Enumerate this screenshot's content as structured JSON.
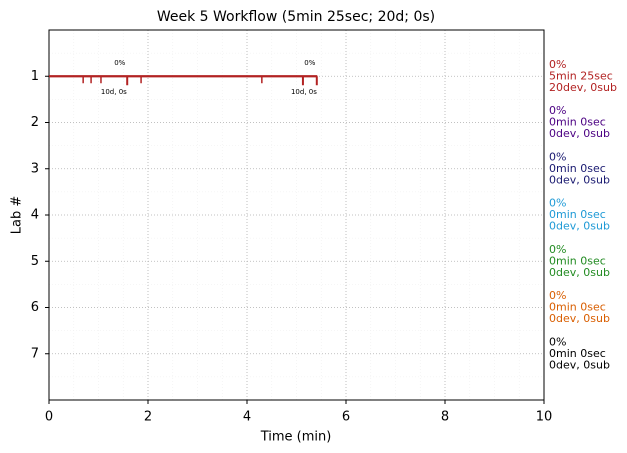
{
  "chart_data": {
    "type": "timeline",
    "title": "Week 5 Workflow (5min 25sec; 20d; 0s)",
    "x_label": "Time (min)",
    "y_label": "Lab #",
    "xlim": [
      0,
      10
    ],
    "xticks": [
      0,
      2,
      4,
      6,
      8,
      10
    ],
    "ylim": [
      8,
      0
    ],
    "yticks": [
      1,
      2,
      3,
      4,
      5,
      6,
      7
    ],
    "grid": true,
    "minor_grid": true,
    "series": [
      {
        "color": "#b22222",
        "y": 1,
        "start": 0,
        "end": 5.42,
        "events": [
          0.69,
          0.85,
          1.05,
          1.86,
          4.3
        ],
        "major_events": [
          1.58,
          5.13,
          5.41
        ]
      }
    ],
    "annotations": [
      {
        "text": "0%",
        "x": 1.43,
        "y": 0.71
      },
      {
        "text": "10d, 0s",
        "x": 1.31,
        "y": 1.34
      },
      {
        "text": "0%",
        "x": 5.27,
        "y": 0.71
      },
      {
        "text": "10d, 0s",
        "x": 5.15,
        "y": 1.34
      }
    ],
    "side_labels": [
      {
        "color": "#b22222",
        "lines": [
          "0%",
          "5min 25sec",
          "20dev, 0sub"
        ]
      },
      {
        "color": "#4b0082",
        "lines": [
          "0%",
          "0min 0sec",
          "0dev, 0sub"
        ]
      },
      {
        "color": "#191970",
        "lines": [
          "0%",
          "0min 0sec",
          "0dev, 0sub"
        ]
      },
      {
        "color": "#1f9ad6",
        "lines": [
          "0%",
          "0min 0sec",
          "0dev, 0sub"
        ]
      },
      {
        "color": "#228b22",
        "lines": [
          "0%",
          "0min 0sec",
          "0dev, 0sub"
        ]
      },
      {
        "color": "#d95f02",
        "lines": [
          "0%",
          "0min 0sec",
          "0dev, 0sub"
        ]
      },
      {
        "color": "#000000",
        "lines": [
          "0%",
          "0min 0sec",
          "0dev, 0sub"
        ]
      }
    ]
  }
}
